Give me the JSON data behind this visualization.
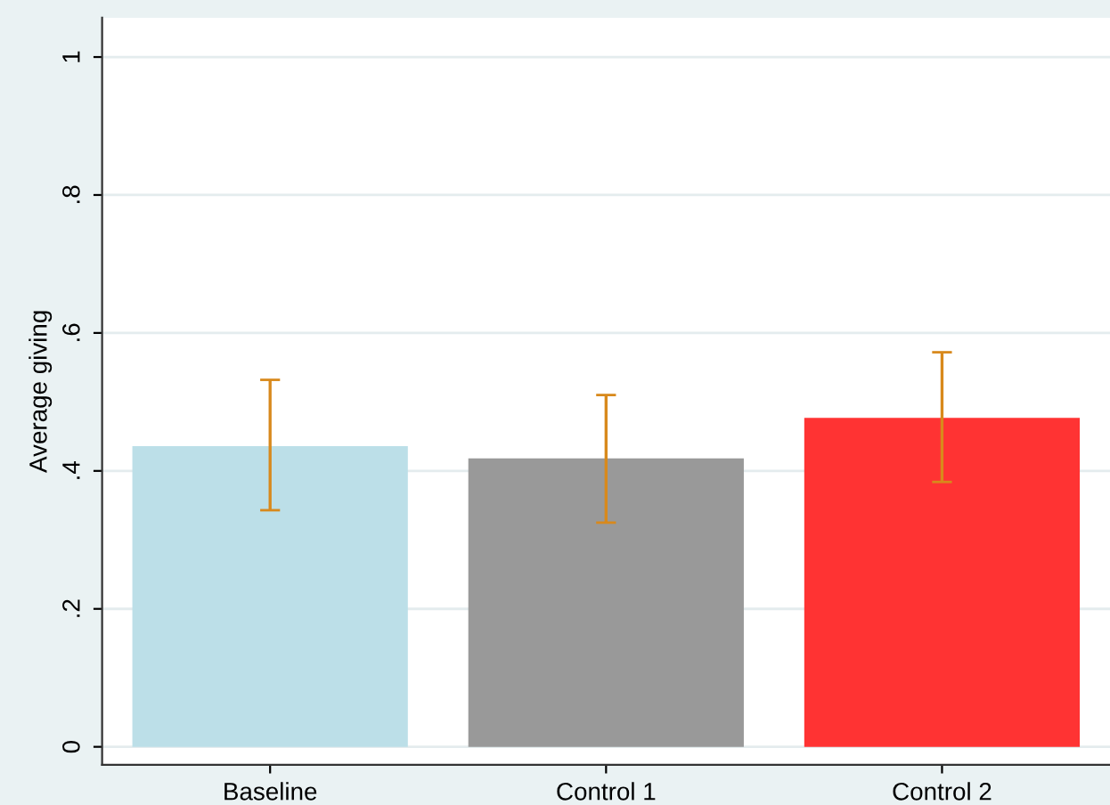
{
  "chart_data": {
    "type": "bar",
    "ylabel": "Average giving",
    "categories": [
      "Baseline",
      "Control 1",
      "Control 2"
    ],
    "values": [
      0.436,
      0.418,
      0.477
    ],
    "colors": [
      "#bcdfe8",
      "#999999",
      "#ff3333"
    ],
    "errors": [
      [
        0.343,
        0.532
      ],
      [
        0.325,
        0.51
      ],
      [
        0.384,
        0.572
      ]
    ],
    "ylim": [
      -0.026,
      1.057
    ],
    "yticks": [
      0,
      {
        "value": 0.2,
        "label": ".2"
      },
      {
        "value": 0.4,
        "label": ".4"
      },
      {
        "value": 0.6,
        "label": ".6"
      },
      {
        "value": 0.8,
        "label": ".8"
      },
      1
    ],
    "grid": "y"
  }
}
